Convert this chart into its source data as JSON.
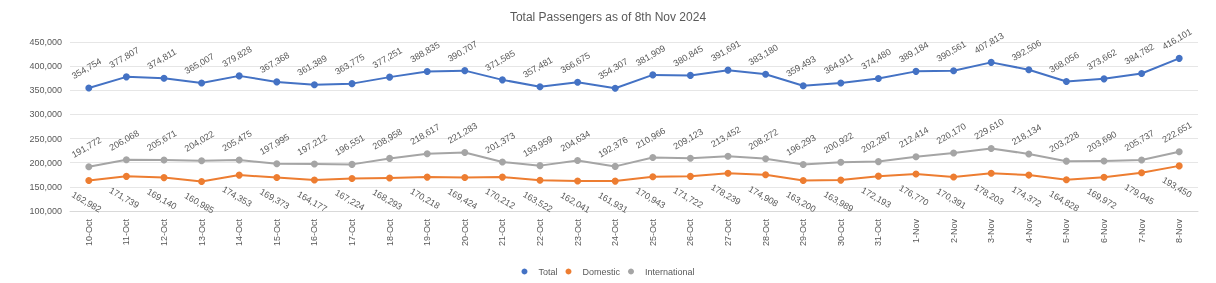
{
  "chart_data": {
    "type": "line",
    "title": "Total Passengers as of 8th Nov 2024",
    "categories": [
      "10-Oct",
      "11-Oct",
      "12-Oct",
      "13-Oct",
      "14-Oct",
      "15-Oct",
      "16-Oct",
      "17-Oct",
      "18-Oct",
      "19-Oct",
      "20-Oct",
      "21-Oct",
      "22-Oct",
      "23-Oct",
      "24-Oct",
      "25-Oct",
      "26-Oct",
      "27-Oct",
      "28-Oct",
      "29-Oct",
      "30-Oct",
      "31-Oct",
      "1-Nov",
      "2-Nov",
      "3-Nov",
      "4-Nov",
      "5-Nov",
      "6-Nov",
      "7-Nov",
      "8-Nov"
    ],
    "series": [
      {
        "name": "Total",
        "color": "#4472c4",
        "values": [
          354754,
          377807,
          374811,
          365007,
          379828,
          367368,
          361389,
          363775,
          377251,
          388835,
          390707,
          371585,
          357481,
          366675,
          354307,
          381909,
          380845,
          391691,
          383180,
          359493,
          364911,
          374480,
          389184,
          390561,
          407813,
          392506,
          368056,
          373662,
          384782,
          416101
        ],
        "value_labels": [
          "354,754",
          "377,807",
          "374,811",
          "365,007",
          "379,828",
          "367,368",
          "361,389",
          "363,775",
          "377,251",
          "388,835",
          "390,707",
          "371,585",
          "357,481",
          "366,675",
          "354,307",
          "381,909",
          "380,845",
          "391,691",
          "383,180",
          "359,493",
          "364,911",
          "374,480",
          "389,184",
          "390,561",
          "407,813",
          "392,506",
          "368,056",
          "373,662",
          "384,782",
          "416,101"
        ]
      },
      {
        "name": "Domestic",
        "color": "#ed7d31",
        "values": [
          162982,
          171739,
          169140,
          160985,
          174353,
          169373,
          164177,
          167224,
          168293,
          170218,
          169424,
          170212,
          163522,
          162041,
          161931,
          170943,
          171722,
          178239,
          174908,
          163200,
          163989,
          172193,
          176770,
          170391,
          178203,
          174372,
          164828,
          169972,
          179045,
          193450
        ],
        "value_labels": [
          "162,982",
          "171,739",
          "169,140",
          "160,985",
          "174,353",
          "169,373",
          "164,177",
          "167,224",
          "168,293",
          "170,218",
          "169,424",
          "170,212",
          "163,522",
          "162,041",
          "161,931",
          "170,943",
          "171,722",
          "178,239",
          "174,908",
          "163,200",
          "163,989",
          "172,193",
          "176,770",
          "170,391",
          "178,203",
          "174,372",
          "164,828",
          "169,972",
          "179,045",
          "193,450"
        ]
      },
      {
        "name": "International",
        "color": "#a5a5a5",
        "values": [
          191772,
          206068,
          205671,
          204022,
          205475,
          197995,
          197212,
          196551,
          208958,
          218617,
          221283,
          201373,
          193959,
          204634,
          192376,
          210966,
          209123,
          213452,
          208272,
          196293,
          200922,
          202287,
          212414,
          220170,
          229610,
          218134,
          203228,
          203690,
          205737,
          222651
        ],
        "value_labels": [
          "191,772",
          "206,068",
          "205,671",
          "204,022",
          "205,475",
          "197,995",
          "197,212",
          "196,551",
          "208,958",
          "218,617",
          "221,283",
          "201,373",
          "193,959",
          "204,634",
          "192,376",
          "210,966",
          "209,123",
          "213,452",
          "208,272",
          "196,293",
          "200,922",
          "202,287",
          "212,414",
          "220,170",
          "229,610",
          "218,134",
          "203,228",
          "203,690",
          "205,737",
          "222,651"
        ]
      }
    ],
    "ylim": [
      100000,
      450000
    ],
    "yticks": [
      {
        "value": 100000,
        "label": "100,000"
      },
      {
        "value": 150000,
        "label": "150,000"
      },
      {
        "value": 200000,
        "label": "200,000"
      },
      {
        "value": 250000,
        "label": "250,000"
      },
      {
        "value": 300000,
        "label": "300,000"
      },
      {
        "value": 350000,
        "label": "350,000"
      },
      {
        "value": 400000,
        "label": "400,000"
      },
      {
        "value": 450000,
        "label": "450,000"
      }
    ],
    "grid": "y",
    "legend": "bottom",
    "marker": "circle",
    "line_style": "solid"
  }
}
